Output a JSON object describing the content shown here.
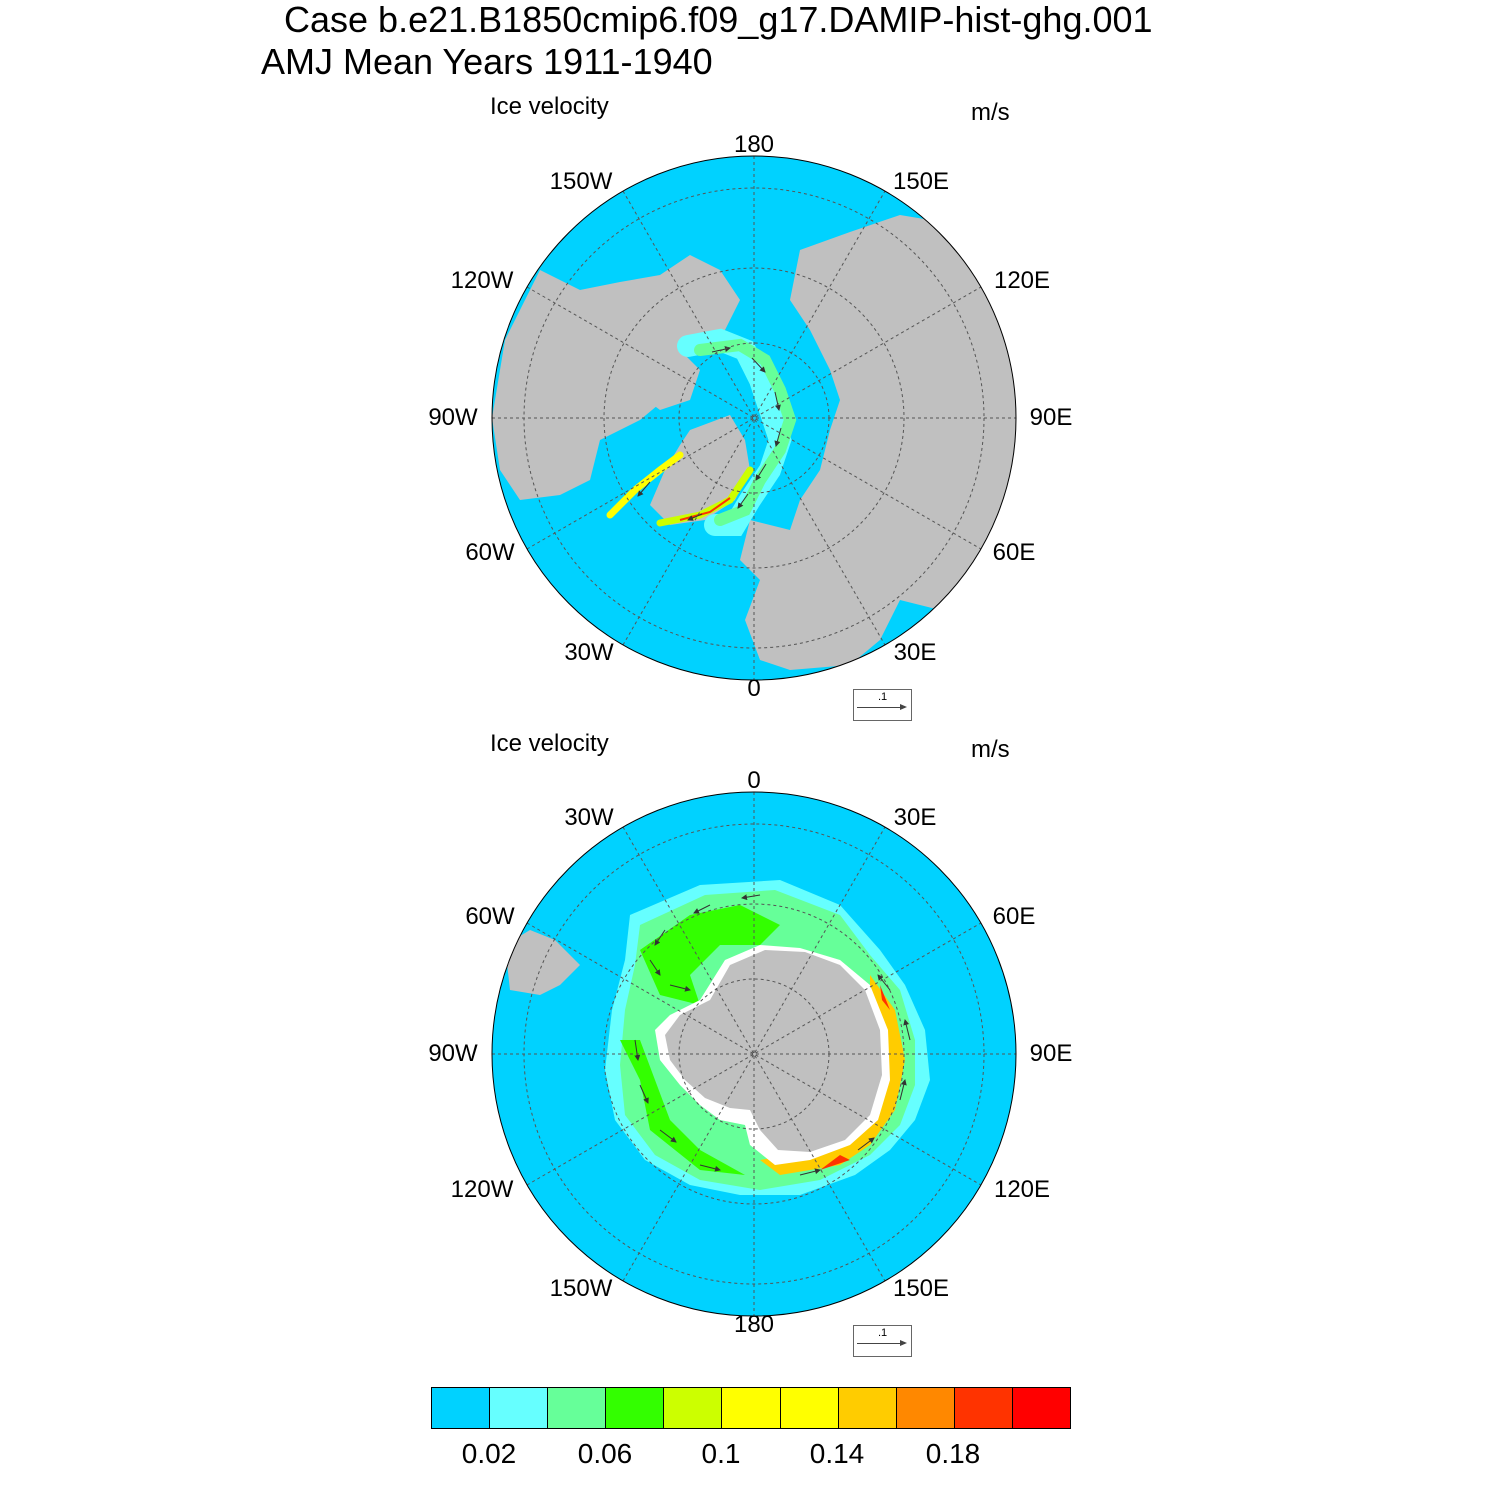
{
  "header": {
    "title_line1": "Case b.e21.B1850cmip6.f09_g17.DAMIP-hist-ghg.001",
    "title_line2": "AMJ Mean   Years 1911-1940"
  },
  "panels": [
    {
      "id": "arctic",
      "hemisphere": "north",
      "title": "Ice velocity",
      "units": "m/s",
      "lon_labels": [
        "180",
        "150E",
        "120E",
        "90E",
        "60E",
        "30E",
        "0",
        "30W",
        "60W",
        "90W",
        "120W",
        "150W"
      ],
      "reference_vector": ".1"
    },
    {
      "id": "antarctic",
      "hemisphere": "south",
      "title": "Ice velocity",
      "units": "m/s",
      "lon_labels": [
        "0",
        "30E",
        "60E",
        "90E",
        "120E",
        "150E",
        "180",
        "150W",
        "120W",
        "90W",
        "60W",
        "30W"
      ],
      "reference_vector": ".1"
    }
  ],
  "colorbar": {
    "colors": [
      "#00d2ff",
      "#66ffff",
      "#66ff99",
      "#33ff00",
      "#ccff00",
      "#ffff00",
      "#ffff00",
      "#ffcc00",
      "#ff8800",
      "#ff3300",
      "#ff0000"
    ],
    "labels": [
      "0.02",
      "0.06",
      "0.1",
      "0.14",
      "0.18"
    ]
  },
  "map_colors": {
    "ocean": "#00d2ff",
    "land": "#c0c0c0",
    "coast_gap": "#ffffff"
  }
}
